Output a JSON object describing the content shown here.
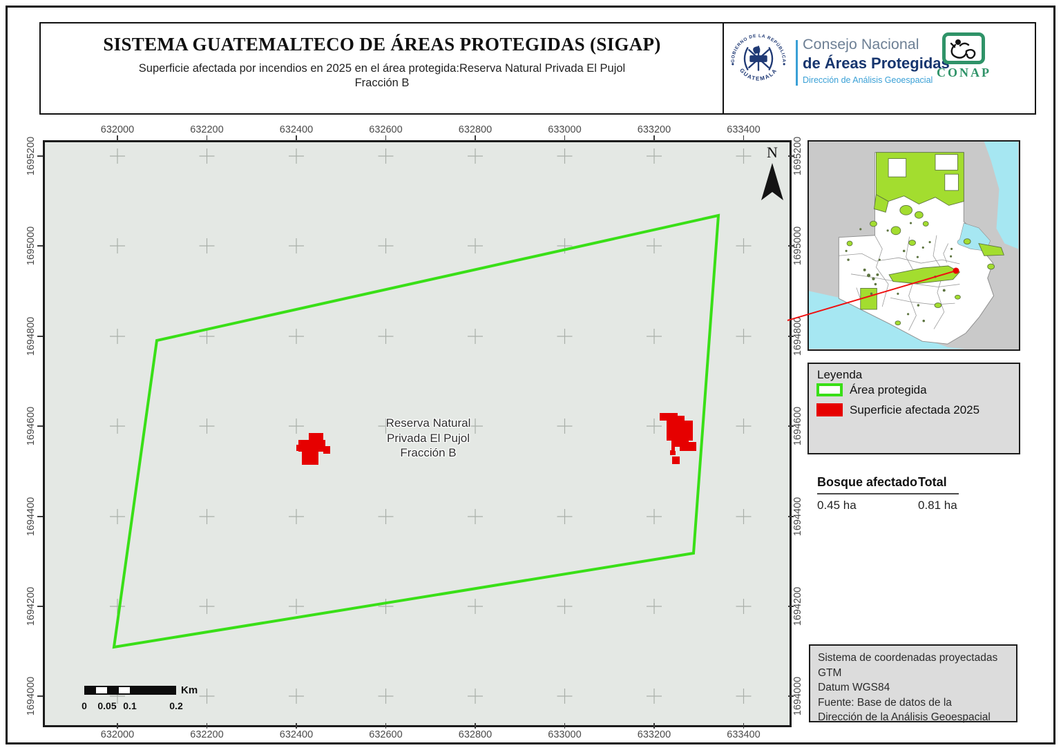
{
  "header": {
    "title": "SISTEMA GUATEMALTECO DE ÁREAS PROTEGIDAS  (SIGAP)",
    "subtitle_line1": "Superficie afectada por incendios en 2025 en el área protegida:Reserva Natural Privada El Pujol",
    "subtitle_line2": "Fracción B",
    "seal": {
      "top_text": "GOBIERNO DE LA REPÚBLICA",
      "bottom_text": "GUATEMALA"
    },
    "org": {
      "line1": "Consejo Nacional",
      "line2": "de Áreas Protegidas",
      "line3": "Dirección de Análisis Geoespacial"
    },
    "conap_label": "CONAP"
  },
  "map": {
    "x_ticks": [
      "632000",
      "632200",
      "632400",
      "632600",
      "632800",
      "633000",
      "633200",
      "633400"
    ],
    "y_ticks": [
      "1695200",
      "1695000",
      "1694800",
      "1694600",
      "1694400",
      "1694200",
      "1694000"
    ],
    "north_label": "N",
    "area_label": [
      "Reserva Natural",
      "Privada El Pujol",
      "Fracción B"
    ],
    "scalebar": {
      "labels": [
        "0",
        "0.05",
        "0.1",
        "0.2"
      ],
      "unit": "Km"
    }
  },
  "legend": {
    "title": "Leyenda",
    "items": [
      {
        "label": "Área protegida",
        "type": "outline",
        "color": "#39df17"
      },
      {
        "label": "Superficie afectada 2025",
        "type": "fill",
        "color": "#e60000"
      }
    ]
  },
  "stats": {
    "header_col1": "Bosque afectado",
    "header_col2": "Total",
    "value_col1": "0.45 ha",
    "value_col2": "0.81 ha"
  },
  "info_box": {
    "lines": [
      "Sistema de coordenadas proyectadas",
      "GTM",
      "Datum WGS84",
      "Fuente: Base de datos de la",
      "Dirección de la Análisis Geoespacial"
    ]
  },
  "colors": {
    "protected_boundary": "#39df17",
    "affected_fill": "#e60000",
    "map_bg": "#e4e8e4",
    "panel_bg": "#dcdcdc",
    "inset_protected": "#a3dd2f",
    "water": "#a6e7f2",
    "neighbor_gray": "#c9c9c9",
    "leader_red": "#ef1010",
    "conap_green": "#2f9368",
    "navy": "#16356e",
    "org_blue": "#3aa0d6"
  }
}
